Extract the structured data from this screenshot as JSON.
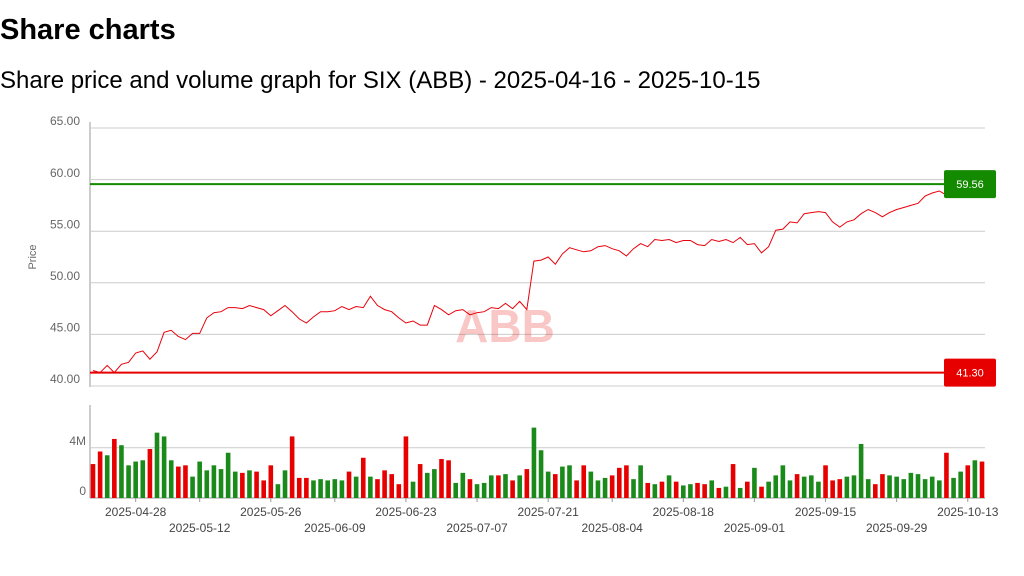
{
  "header": {
    "title": "Share charts",
    "subtitle": "Share price and volume graph for SIX (ABB) - 2025-04-16 - 2025-10-15"
  },
  "chart_data": [
    {
      "type": "line",
      "ylabel": "Price",
      "color": "#e8000b",
      "grid": true,
      "watermark": "ABB",
      "ylim": [
        40,
        65
      ],
      "yticks": [
        {
          "value": 40,
          "label": "40.00"
        },
        {
          "value": 45,
          "label": "45.00"
        },
        {
          "value": 50,
          "label": "50.00"
        },
        {
          "value": 55,
          "label": "55.00"
        },
        {
          "value": 60,
          "label": "60.00"
        },
        {
          "value": 65,
          "label": "65.00"
        }
      ],
      "values": [
        41.5,
        41.3,
        42.0,
        41.3,
        42.1,
        42.3,
        43.2,
        43.4,
        42.6,
        43.3,
        45.2,
        45.4,
        44.8,
        44.5,
        45.1,
        45.1,
        46.6,
        47.1,
        47.2,
        47.6,
        47.6,
        47.5,
        47.8,
        47.6,
        47.4,
        46.8,
        47.3,
        47.8,
        47.2,
        46.5,
        46.1,
        46.7,
        47.2,
        47.2,
        47.3,
        47.7,
        47.4,
        47.7,
        47.6,
        48.7,
        47.8,
        47.4,
        47.2,
        46.6,
        46.1,
        46.3,
        45.9,
        45.9,
        47.8,
        47.4,
        46.9,
        47.3,
        47.4,
        46.9,
        47.1,
        47.2,
        47.6,
        47.5,
        48.0,
        47.5,
        48.2,
        47.4,
        52.1,
        52.2,
        52.5,
        51.8,
        52.8,
        53.4,
        53.2,
        53.0,
        53.1,
        53.5,
        53.6,
        53.3,
        53.1,
        52.6,
        53.3,
        53.8,
        53.5,
        54.2,
        54.1,
        54.2,
        53.9,
        54.1,
        54.1,
        53.7,
        53.6,
        54.2,
        54.0,
        54.2,
        53.9,
        54.4,
        53.7,
        53.8,
        52.9,
        53.5,
        55.1,
        55.2,
        55.9,
        55.8,
        56.7,
        56.8,
        56.9,
        56.8,
        55.9,
        55.4,
        55.9,
        56.1,
        56.7,
        57.1,
        56.8,
        56.4,
        56.8,
        57.1,
        57.3,
        57.5,
        57.7,
        58.4,
        58.7,
        58.9,
        58.5,
        59.0,
        59.3,
        59.1,
        59.56,
        59.4
      ],
      "reference_lines": [
        {
          "value": 59.56,
          "color": "#138a00"
        },
        {
          "value": 41.3,
          "label": "41.30",
          "color": "#e60000"
        }
      ]
    },
    {
      "type": "bar",
      "up_color": "#1a8a1a",
      "down_color": "#e60000",
      "ylim": [
        0,
        7.4
      ],
      "yticks": [
        0,
        {
          "value": 4,
          "label": "4M"
        }
      ],
      "categories": [
        null,
        null,
        null,
        null,
        null,
        null,
        "2025-04-28",
        null,
        null,
        null,
        null,
        null,
        null,
        null,
        null,
        "2025-05-12",
        null,
        null,
        null,
        null,
        null,
        null,
        null,
        null,
        null,
        "2025-05-26",
        null,
        null,
        null,
        null,
        null,
        null,
        null,
        null,
        "2025-06-09",
        null,
        null,
        null,
        null,
        null,
        null,
        null,
        null,
        null,
        "2025-06-23",
        null,
        null,
        null,
        null,
        null,
        null,
        null,
        null,
        null,
        "2025-07-07",
        null,
        null,
        null,
        null,
        null,
        null,
        null,
        null,
        null,
        "2025-07-21",
        null,
        null,
        null,
        null,
        null,
        null,
        null,
        null,
        "2025-08-04",
        null,
        null,
        null,
        null,
        null,
        null,
        null,
        null,
        null,
        "2025-08-18",
        null,
        null,
        null,
        null,
        null,
        null,
        null,
        null,
        null,
        "2025-09-01",
        null,
        null,
        null,
        null,
        null,
        null,
        null,
        null,
        null,
        "2025-09-15",
        null,
        null,
        null,
        null,
        null,
        null,
        null,
        null,
        null,
        "2025-09-29",
        null,
        null,
        null,
        null,
        null,
        null,
        null,
        null,
        null,
        "2025-10-13",
        null,
        null
      ],
      "values": [
        2.7,
        3.7,
        3.4,
        4.7,
        4.2,
        2.6,
        2.9,
        3.0,
        3.9,
        5.2,
        4.9,
        3.0,
        2.5,
        2.6,
        1.7,
        2.9,
        2.2,
        2.6,
        2.3,
        3.6,
        2.1,
        2.0,
        2.2,
        2.1,
        1.4,
        2.6,
        1.1,
        2.2,
        4.9,
        1.6,
        1.6,
        1.4,
        1.5,
        1.4,
        1.5,
        1.4,
        2.1,
        1.7,
        3.2,
        1.7,
        1.5,
        2.2,
        1.9,
        1.1,
        4.9,
        1.3,
        2.7,
        2.0,
        2.3,
        3.1,
        3.0,
        1.2,
        2.0,
        1.5,
        1.1,
        1.2,
        1.8,
        1.8,
        1.9,
        1.4,
        1.8,
        2.3,
        5.6,
        3.8,
        2.1,
        1.9,
        2.5,
        2.6,
        1.4,
        2.6,
        2.1,
        1.4,
        1.6,
        1.8,
        2.4,
        2.6,
        1.5,
        2.6,
        1.2,
        1.1,
        1.3,
        1.8,
        1.3,
        1.0,
        1.1,
        1.2,
        1.1,
        1.4,
        0.8,
        0.9,
        2.7,
        0.8,
        1.3,
        2.4,
        0.9,
        1.3,
        1.8,
        2.6,
        1.4,
        1.9,
        1.7,
        1.8,
        1.3,
        2.6,
        1.4,
        1.5,
        1.7,
        1.8,
        4.3,
        1.5,
        1.1,
        1.9,
        1.8,
        1.7,
        1.5,
        2.0,
        1.9,
        1.5,
        1.7,
        1.4,
        3.6,
        1.6,
        2.1,
        2.6,
        3.0,
        2.9
      ]
    }
  ]
}
